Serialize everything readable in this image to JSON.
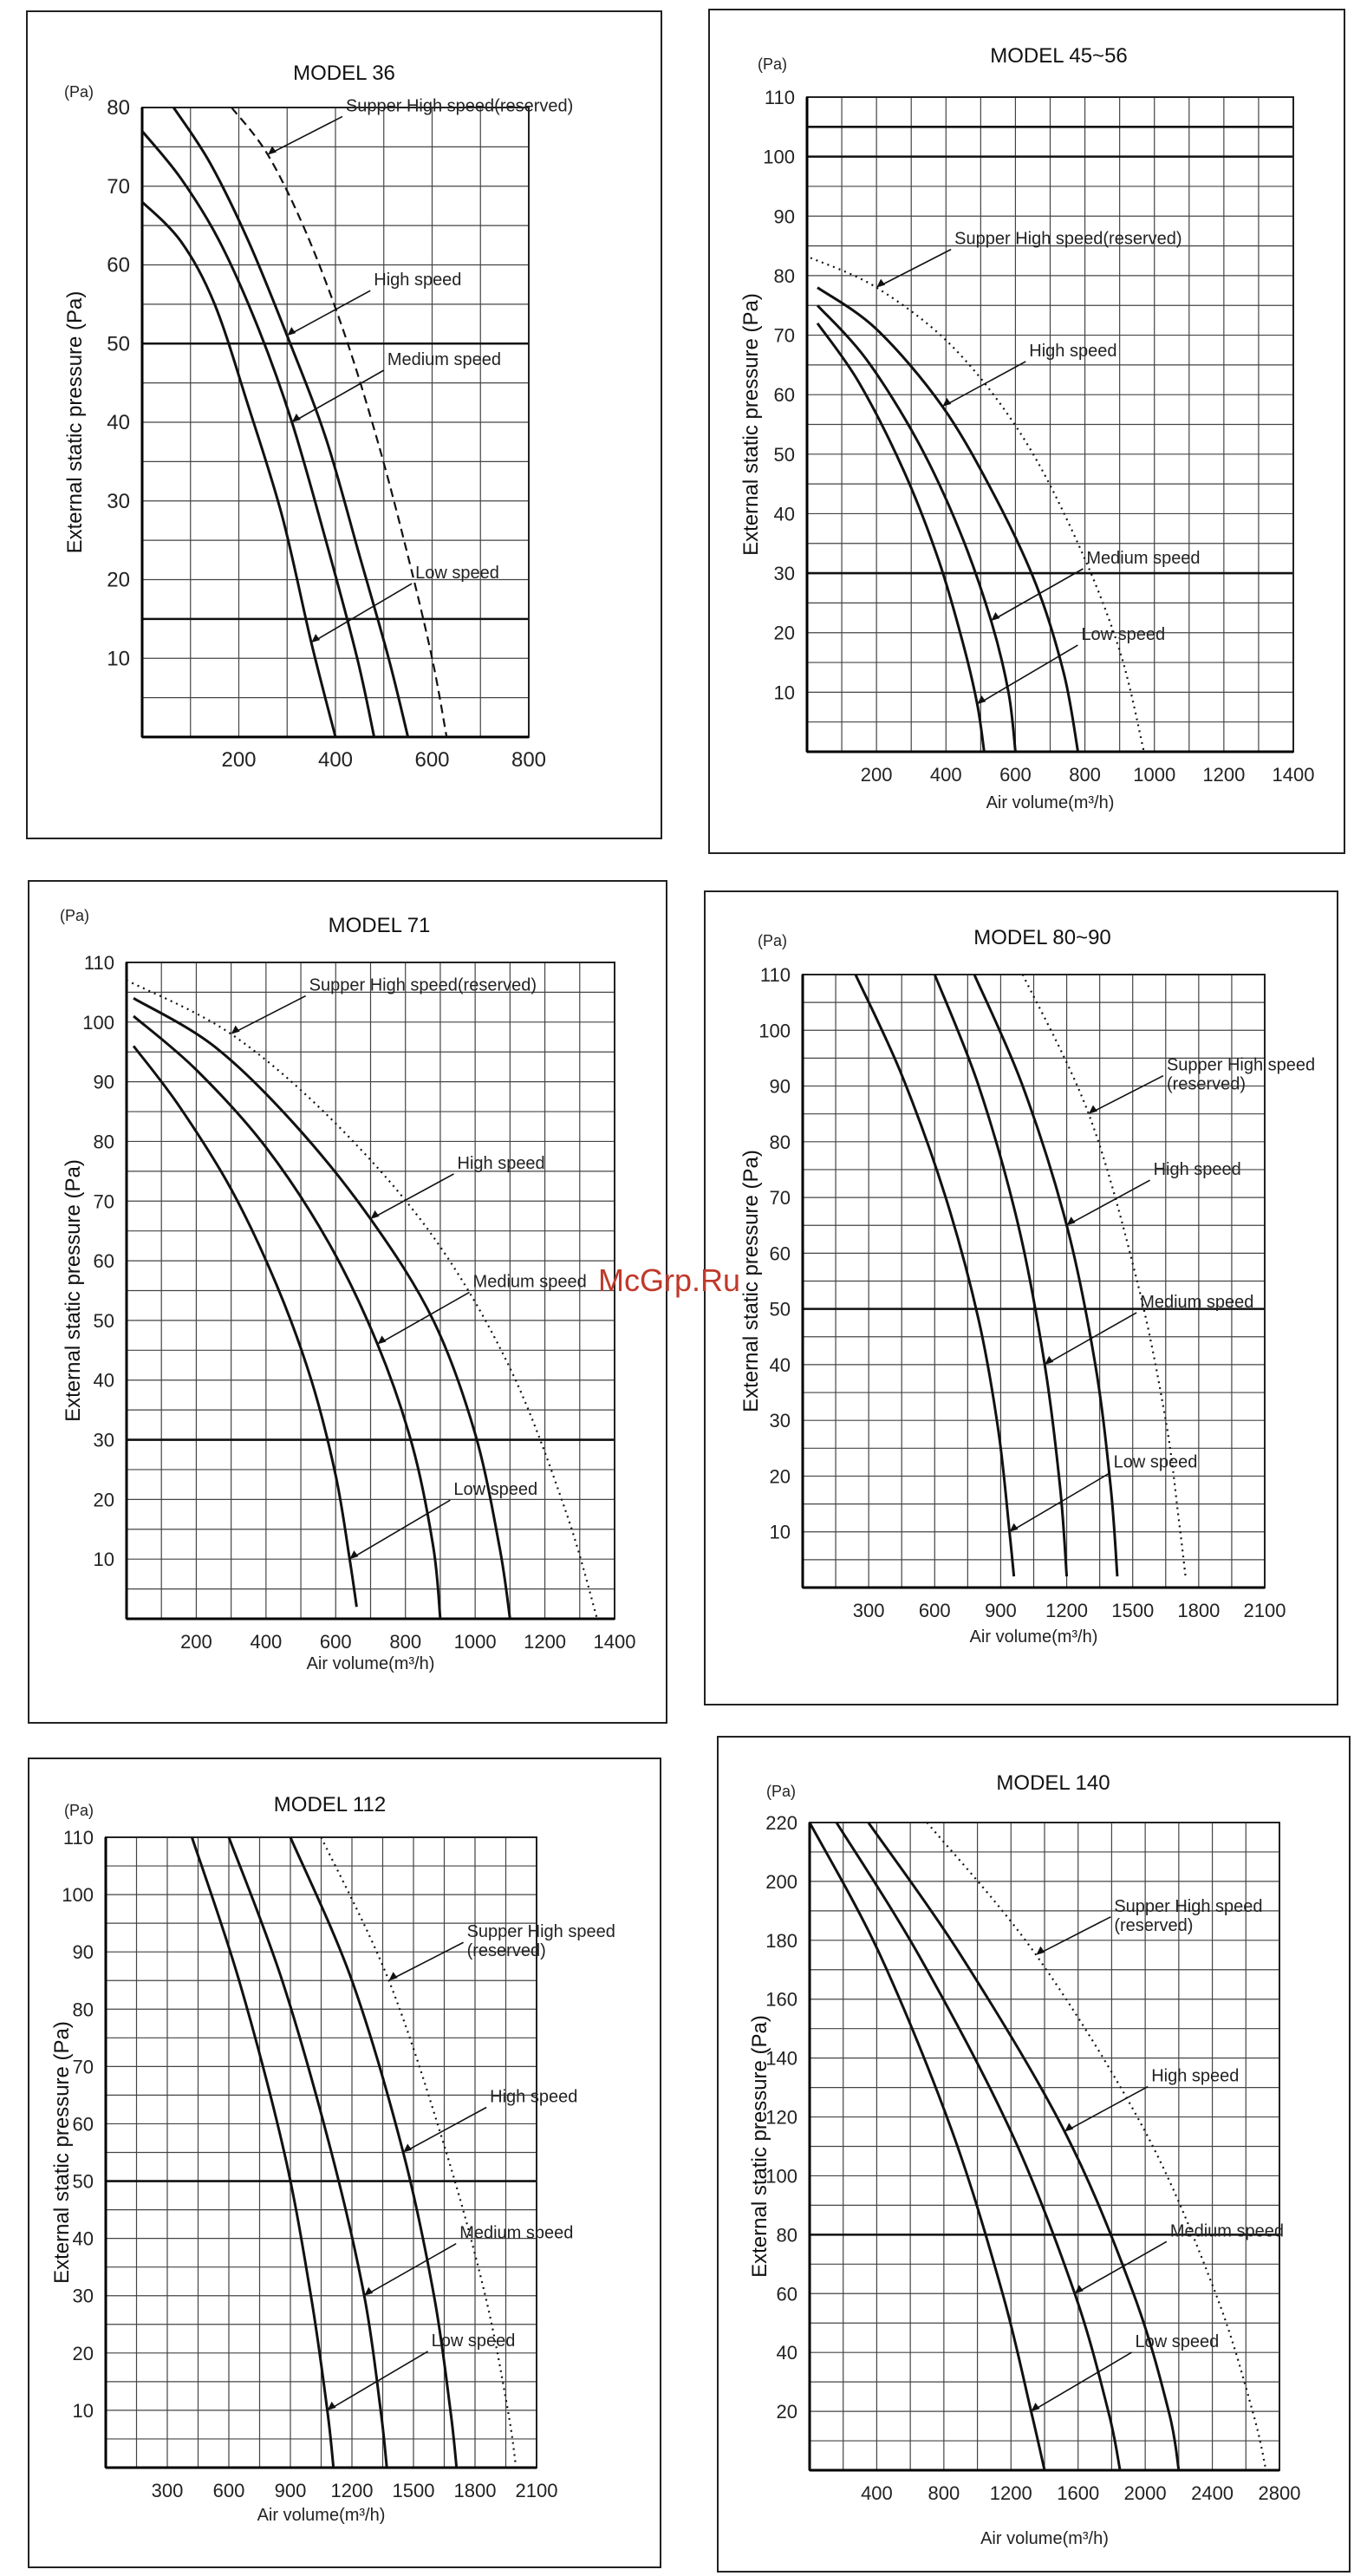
{
  "watermark": "McGrp.Ru",
  "chart_data": [
    {
      "type": "line",
      "title": "MODEL 36",
      "ylabel": "External static pressure (Pa)",
      "yunit": "(Pa)",
      "xlabel": "",
      "xlim": [
        0,
        800
      ],
      "ylim": [
        0,
        80
      ],
      "xticks": [
        200,
        400,
        600,
        800
      ],
      "yticks": [
        10,
        20,
        30,
        40,
        50,
        60,
        70,
        80
      ],
      "thick_hlines": [
        15,
        50
      ],
      "series": [
        {
          "name": "Low speed",
          "dashed": false,
          "x": [
            0,
            80,
            150,
            220,
            290,
            350,
            400
          ],
          "y": [
            68,
            63,
            55,
            42,
            28,
            12,
            0
          ]
        },
        {
          "name": "Medium speed",
          "dashed": false,
          "x": [
            0,
            80,
            160,
            240,
            310,
            380,
            445,
            480
          ],
          "y": [
            77,
            71,
            63,
            52,
            40,
            25,
            10,
            0
          ]
        },
        {
          "name": "High speed",
          "dashed": false,
          "x": [
            65,
            140,
            220,
            300,
            380,
            450,
            510,
            550
          ],
          "y": [
            80,
            73,
            63,
            51,
            38,
            23,
            10,
            0
          ]
        },
        {
          "name": "Supper High speed(reserved)",
          "dashed": true,
          "x": [
            185,
            260,
            340,
            420,
            490,
            550,
            600,
            630
          ],
          "y": [
            80,
            74,
            64,
            51,
            37,
            23,
            10,
            0
          ]
        }
      ],
      "labels": [
        "Supper High speed(reserved)",
        "High speed",
        "Medium speed",
        "Low speed"
      ]
    },
    {
      "type": "line",
      "title": "MODEL 45~56",
      "ylabel": "External static pressure (Pa)",
      "yunit": "(Pa)",
      "xlabel": "Air volume(m³/h)",
      "xlim": [
        0,
        1400
      ],
      "ylim": [
        0,
        110
      ],
      "xticks": [
        200,
        400,
        600,
        800,
        1000,
        1200,
        1400
      ],
      "yticks": [
        10,
        20,
        30,
        40,
        50,
        60,
        70,
        80,
        90,
        100,
        110
      ],
      "thick_hlines": [
        30,
        100,
        105
      ],
      "series": [
        {
          "name": "Low speed",
          "dashed": false,
          "x": [
            30,
            150,
            280,
            380,
            450,
            490,
            510
          ],
          "y": [
            72,
            62,
            47,
            32,
            18,
            8,
            0
          ]
        },
        {
          "name": "Medium speed",
          "dashed": false,
          "x": [
            30,
            170,
            320,
            440,
            530,
            580,
            600
          ],
          "y": [
            75,
            66,
            52,
            37,
            22,
            10,
            0
          ]
        },
        {
          "name": "High speed",
          "dashed": false,
          "x": [
            30,
            200,
            390,
            540,
            660,
            740,
            780
          ],
          "y": [
            78,
            71,
            58,
            43,
            28,
            13,
            0
          ]
        },
        {
          "name": "Supper High speed(reserved)",
          "dashed": true,
          "x": [
            10,
            200,
            420,
            620,
            780,
            900,
            970
          ],
          "y": [
            83,
            78,
            68,
            53,
            35,
            17,
            0
          ]
        }
      ],
      "labels": [
        "Supper High speed(reserved)",
        "High speed",
        "Medium speed",
        "Low speed"
      ]
    },
    {
      "type": "line",
      "title": "MODEL 71",
      "ylabel": "External static pressure (Pa)",
      "yunit": "(Pa)",
      "xlabel": "Air volume(m³/h)",
      "xlim": [
        0,
        1400
      ],
      "ylim": [
        0,
        110
      ],
      "xticks": [
        200,
        400,
        600,
        800,
        1000,
        1200,
        1400
      ],
      "yticks": [
        10,
        20,
        30,
        40,
        50,
        60,
        70,
        80,
        90,
        100,
        110
      ],
      "thick_hlines": [
        30
      ],
      "series": [
        {
          "name": "Low speed",
          "dashed": false,
          "x": [
            20,
            150,
            300,
            430,
            530,
            600,
            640,
            660
          ],
          "y": [
            96,
            86,
            72,
            56,
            40,
            24,
            10,
            2
          ]
        },
        {
          "name": "Medium speed",
          "dashed": false,
          "x": [
            20,
            200,
            400,
            580,
            720,
            820,
            880,
            900
          ],
          "y": [
            101,
            92,
            79,
            63,
            46,
            29,
            12,
            0
          ]
        },
        {
          "name": "High speed",
          "dashed": false,
          "x": [
            20,
            250,
            480,
            700,
            880,
            1000,
            1070,
            1100
          ],
          "y": [
            104,
            96,
            83,
            67,
            50,
            31,
            12,
            0
          ]
        },
        {
          "name": "Supper High speed(reserved)",
          "dashed": true,
          "x": [
            0,
            300,
            600,
            880,
            1100,
            1260,
            1350
          ],
          "y": [
            107,
            98,
            83,
            64,
            42,
            18,
            0
          ]
        }
      ],
      "labels": [
        "Supper High speed(reserved)",
        "High speed",
        "Medium speed",
        "Low speed"
      ]
    },
    {
      "type": "line",
      "title": "MODEL 80~90",
      "ylabel": "External static pressure (Pa)",
      "yunit": "(Pa)",
      "xlabel": "Air volume(m³/h)",
      "xlim": [
        0,
        2100
      ],
      "ylim": [
        0,
        110
      ],
      "xticks": [
        300,
        600,
        900,
        1200,
        1500,
        1800,
        2100
      ],
      "yticks": [
        10,
        20,
        30,
        40,
        50,
        60,
        70,
        80,
        90,
        100,
        110
      ],
      "thick_hlines": [
        50
      ],
      "series": [
        {
          "name": "Low speed",
          "dashed": false,
          "x": [
            240,
            450,
            650,
            800,
            890,
            940,
            960
          ],
          "y": [
            110,
            92,
            70,
            48,
            28,
            10,
            2
          ]
        },
        {
          "name": "Medium speed",
          "dashed": false,
          "x": [
            600,
            800,
            980,
            1100,
            1170,
            1200
          ],
          "y": [
            110,
            90,
            65,
            40,
            18,
            2
          ]
        },
        {
          "name": "High speed",
          "dashed": false,
          "x": [
            780,
            1000,
            1200,
            1330,
            1400,
            1430
          ],
          "y": [
            110,
            90,
            65,
            40,
            18,
            2
          ]
        },
        {
          "name": "Supper High speed(reserved)",
          "dashed": true,
          "x": [
            1000,
            1300,
            1520,
            1650,
            1710,
            1740
          ],
          "y": [
            110,
            85,
            55,
            30,
            12,
            2
          ]
        }
      ],
      "labels": [
        "Supper High speed\n(reserved)",
        "High speed",
        "Medium speed",
        "Low speed"
      ]
    },
    {
      "type": "line",
      "title": "MODEL 112",
      "ylabel": "External static pressure (Pa)",
      "yunit": "(Pa)",
      "xlabel": "Air volume(m³/h)",
      "xlim": [
        0,
        2100
      ],
      "ylim": [
        0,
        110
      ],
      "xticks": [
        300,
        600,
        900,
        1200,
        1500,
        1800,
        2100
      ],
      "yticks": [
        10,
        20,
        30,
        40,
        50,
        60,
        70,
        80,
        90,
        100,
        110
      ],
      "thick_hlines": [
        50
      ],
      "series": [
        {
          "name": "Low speed",
          "dashed": false,
          "x": [
            420,
            650,
            870,
            1000,
            1080,
            1110
          ],
          "y": [
            110,
            85,
            55,
            30,
            10,
            0
          ]
        },
        {
          "name": "Medium speed",
          "dashed": false,
          "x": [
            600,
            860,
            1100,
            1260,
            1340,
            1370
          ],
          "y": [
            110,
            85,
            55,
            30,
            10,
            0
          ]
        },
        {
          "name": "High speed",
          "dashed": false,
          "x": [
            900,
            1200,
            1450,
            1600,
            1680,
            1710
          ],
          "y": [
            110,
            85,
            55,
            30,
            10,
            0
          ]
        },
        {
          "name": "Supper High speed(reserved)",
          "dashed": true,
          "x": [
            1050,
            1380,
            1660,
            1850,
            1960,
            2000
          ],
          "y": [
            110,
            85,
            55,
            30,
            10,
            0
          ]
        }
      ],
      "labels": [
        "Supper High speed\n(reserved)",
        "High speed",
        "Medium speed",
        "Low speed"
      ]
    },
    {
      "type": "line",
      "title": "MODEL 140",
      "ylabel": "External static pressure (Pa)",
      "yunit": "(Pa)",
      "xlabel": "Air volume(m³/h)",
      "xlim": [
        0,
        2800
      ],
      "ylim": [
        0,
        220
      ],
      "xticks": [
        400,
        800,
        1200,
        1600,
        2000,
        2400,
        2800
      ],
      "yticks": [
        20,
        40,
        60,
        80,
        100,
        120,
        140,
        160,
        180,
        200,
        220
      ],
      "thick_hlines": [
        80
      ],
      "series": [
        {
          "name": "Low speed",
          "dashed": false,
          "x": [
            0,
            420,
            850,
            1150,
            1320,
            1400
          ],
          "y": [
            220,
            175,
            115,
            60,
            20,
            0
          ]
        },
        {
          "name": "Medium speed",
          "dashed": false,
          "x": [
            160,
            650,
            1200,
            1580,
            1780,
            1850
          ],
          "y": [
            220,
            175,
            115,
            60,
            20,
            0
          ]
        },
        {
          "name": "High speed",
          "dashed": false,
          "x": [
            350,
            900,
            1520,
            1930,
            2140,
            2200
          ],
          "y": [
            220,
            175,
            115,
            60,
            20,
            0
          ]
        },
        {
          "name": "Supper High speed(reserved)",
          "dashed": true,
          "x": [
            700,
            1350,
            2000,
            2420,
            2640,
            2720
          ],
          "y": [
            220,
            175,
            115,
            60,
            20,
            0
          ]
        }
      ],
      "labels": [
        "Supper High speed\n(reserved)",
        "High speed",
        "Medium speed",
        "Low speed"
      ]
    }
  ]
}
